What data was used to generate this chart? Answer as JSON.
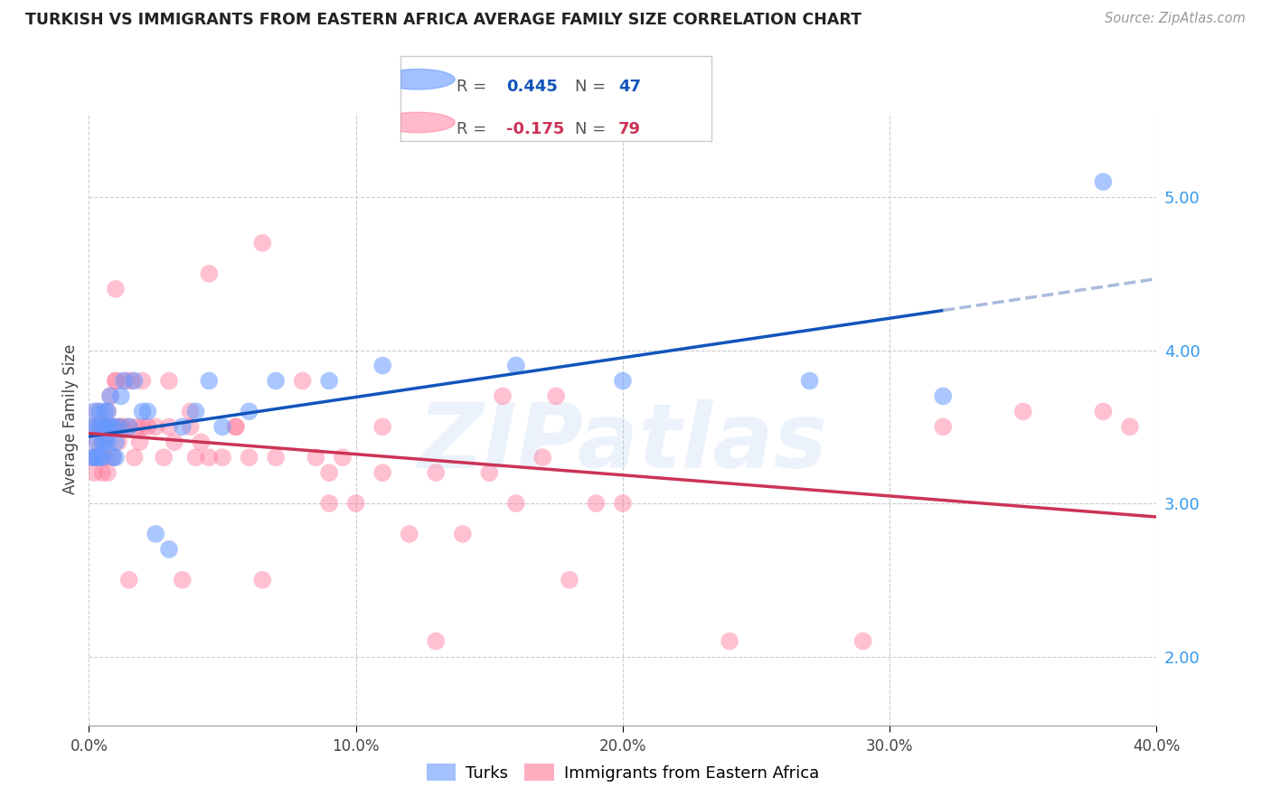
{
  "title": "TURKISH VS IMMIGRANTS FROM EASTERN AFRICA AVERAGE FAMILY SIZE CORRELATION CHART",
  "source": "Source: ZipAtlas.com",
  "ylabel": "Average Family Size",
  "yticks": [
    2.0,
    3.0,
    4.0,
    5.0
  ],
  "xlim": [
    0.0,
    0.4
  ],
  "ylim": [
    1.55,
    5.55
  ],
  "turks_R": 0.445,
  "turks_N": 47,
  "ea_R": -0.175,
  "ea_N": 79,
  "turks_color": "#6699ff",
  "ea_color": "#ff7799",
  "trendline_turks_color": "#1155bb",
  "trendline_ea_color": "#cc3355",
  "trendline_turks_dashed_color": "#aabbdd",
  "watermark": "ZIPatlas",
  "legend_label_turks": "Turks",
  "legend_label_ea": "Immigrants from Eastern Africa",
  "turks_x": [
    0.001,
    0.001,
    0.002,
    0.002,
    0.003,
    0.003,
    0.003,
    0.004,
    0.004,
    0.004,
    0.005,
    0.005,
    0.005,
    0.006,
    0.006,
    0.006,
    0.007,
    0.007,
    0.007,
    0.008,
    0.008,
    0.009,
    0.009,
    0.01,
    0.01,
    0.011,
    0.012,
    0.013,
    0.015,
    0.017,
    0.02,
    0.022,
    0.025,
    0.03,
    0.035,
    0.04,
    0.045,
    0.05,
    0.06,
    0.07,
    0.09,
    0.11,
    0.16,
    0.2,
    0.27,
    0.32,
    0.38
  ],
  "turks_y": [
    3.3,
    3.5,
    3.3,
    3.6,
    3.4,
    3.5,
    3.3,
    3.5,
    3.3,
    3.6,
    3.4,
    3.5,
    3.3,
    3.5,
    3.6,
    3.4,
    3.6,
    3.4,
    3.5,
    3.5,
    3.7,
    3.5,
    3.3,
    3.4,
    3.3,
    3.5,
    3.7,
    3.8,
    3.5,
    3.8,
    3.6,
    3.6,
    2.8,
    2.7,
    3.5,
    3.6,
    3.8,
    3.5,
    3.6,
    3.8,
    3.8,
    3.9,
    3.9,
    3.8,
    3.8,
    3.7,
    5.1
  ],
  "ea_x": [
    0.001,
    0.002,
    0.002,
    0.003,
    0.003,
    0.004,
    0.004,
    0.005,
    0.005,
    0.006,
    0.006,
    0.007,
    0.007,
    0.008,
    0.008,
    0.009,
    0.009,
    0.01,
    0.01,
    0.011,
    0.011,
    0.012,
    0.013,
    0.014,
    0.015,
    0.016,
    0.017,
    0.018,
    0.019,
    0.02,
    0.022,
    0.025,
    0.028,
    0.03,
    0.032,
    0.035,
    0.038,
    0.04,
    0.042,
    0.045,
    0.05,
    0.055,
    0.06,
    0.065,
    0.07,
    0.08,
    0.085,
    0.09,
    0.095,
    0.1,
    0.11,
    0.12,
    0.13,
    0.14,
    0.15,
    0.16,
    0.17,
    0.18,
    0.19,
    0.2,
    0.02,
    0.03,
    0.038,
    0.045,
    0.055,
    0.065,
    0.09,
    0.11,
    0.13,
    0.155,
    0.175,
    0.24,
    0.29,
    0.32,
    0.35,
    0.38,
    0.39,
    0.01,
    0.015
  ],
  "ea_y": [
    3.3,
    3.2,
    3.5,
    3.4,
    3.6,
    3.3,
    3.5,
    3.2,
    3.4,
    3.5,
    3.3,
    3.6,
    3.2,
    3.7,
    3.5,
    3.5,
    3.3,
    3.8,
    3.8,
    3.5,
    3.4,
    3.5,
    3.5,
    3.8,
    3.5,
    3.8,
    3.3,
    3.5,
    3.4,
    3.5,
    3.5,
    3.5,
    3.3,
    3.5,
    3.4,
    2.5,
    3.5,
    3.3,
    3.4,
    3.3,
    3.3,
    3.5,
    3.3,
    4.7,
    3.3,
    3.8,
    3.3,
    3.2,
    3.3,
    3.0,
    3.5,
    2.8,
    3.2,
    2.8,
    3.2,
    3.0,
    3.3,
    2.5,
    3.0,
    3.0,
    3.8,
    3.8,
    3.6,
    4.5,
    3.5,
    2.5,
    3.0,
    3.2,
    2.1,
    3.7,
    3.7,
    2.1,
    2.1,
    3.5,
    3.6,
    3.6,
    3.5,
    4.4,
    2.5
  ]
}
